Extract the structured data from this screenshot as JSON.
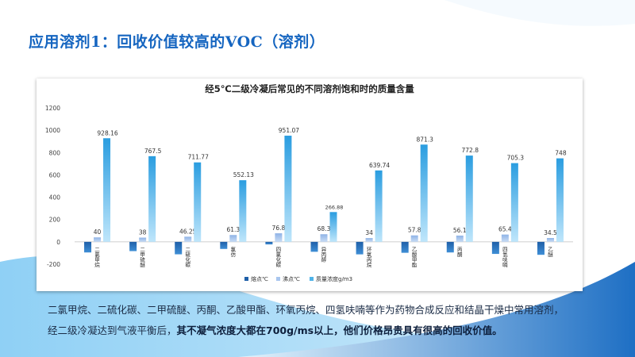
{
  "slide": {
    "title": "应用溶剂1：回收价值较高的VOC（溶剂）",
    "caption_line1": "二氯甲烷、二硫化碳、二甲硫醚、丙酮、乙酸甲酯、环氧丙烷、四氢呋喃等作为药物合成反应和结晶干燥中常用溶剂，",
    "caption_line2_normal": "经二级冷凝达到气液平衡后，",
    "caption_line2_bold": "其不凝气浓度大都在700g/ms以上，他们价格昂贵具有很高的回收价值。"
  },
  "colors": {
    "title": "#1565c0",
    "series_dark": "#1f5fa8",
    "series_light": "#a9c6ee",
    "series_sky": "#4fb3e8"
  },
  "chart_data": {
    "type": "bar",
    "title": "经5℃二级冷凝后常见的不同溶剂饱和时的质量含量",
    "categories": [
      "二氯甲烷",
      "二甲硫醚",
      "二硫化碳",
      "氯仿",
      "四氯化碳",
      "异丙醇",
      "环氧丙烷",
      "乙酸甲酯",
      "丙酮",
      "四氢呋喃",
      "乙醚"
    ],
    "series": [
      {
        "name": "熔点℃",
        "values": [
          -95,
          -83,
          -111.6,
          -63.5,
          -23,
          -89,
          -112,
          -98,
          -95,
          -108,
          -116
        ]
      },
      {
        "name": "沸点℃",
        "values": [
          40,
          38,
          46.25,
          61.3,
          76.8,
          68.3,
          34,
          57.8,
          56.1,
          65.4,
          34.5
        ]
      },
      {
        "name": "质量浓度g/m3",
        "values": [
          928.16,
          767.5,
          711.77,
          552.13,
          951.07,
          266.88,
          639.74,
          871.3,
          772.8,
          705.3,
          748
        ]
      }
    ],
    "data_labels": [
      [
        "",
        "",
        "",
        "",
        "",
        "",
        "",
        "",
        "",
        "",
        ""
      ],
      [
        "40",
        "38",
        "46.25",
        "61.3",
        "76.8",
        "68.3",
        "34",
        "57.8",
        "56.1",
        "65.4",
        "34.5"
      ],
      [
        "928.16",
        "767.5",
        "711.77",
        "552.13",
        "951.07",
        "266.88",
        "639.74",
        "871.3",
        "772.8",
        "705.3",
        "748"
      ]
    ],
    "ylim": [
      -200,
      1200
    ],
    "yticks": [
      -200,
      0,
      200,
      400,
      600,
      800,
      1000,
      1200
    ],
    "ytick_labels": [
      "-200",
      "0",
      "200",
      "400",
      "600",
      "800",
      "1000",
      "1200"
    ],
    "grid": false,
    "legend_position": "bottom"
  }
}
